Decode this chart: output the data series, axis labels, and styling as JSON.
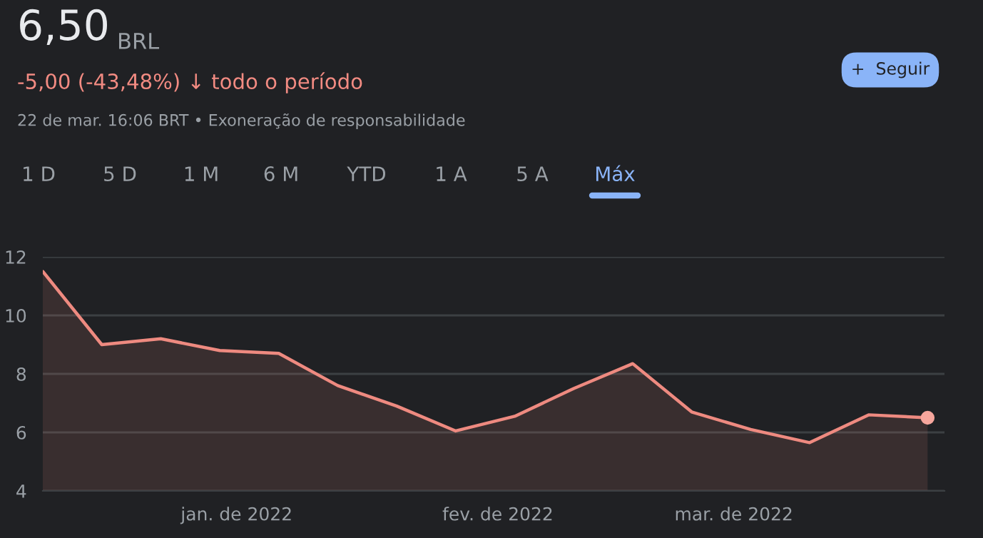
{
  "chart_data": {
    "type": "area",
    "title": "6,50",
    "annotations": [
      "BRL",
      "-5,00 (-43,48%) ↓ todo o período",
      "22 de mar. 16:06 BRT • Exoneração de responsabilidade",
      "+  Seguir",
      "1 D",
      "5 D",
      "1 M",
      "6 M",
      "YTD",
      "1 A",
      "5 A",
      "Máx"
    ],
    "x": [
      "2021-12-09",
      "2021-12-16",
      "2021-12-23",
      "2021-12-30",
      "2022-01-06",
      "2022-01-13",
      "2022-01-20",
      "2022-01-27",
      "2022-02-03",
      "2022-02-10",
      "2022-02-17",
      "2022-02-24",
      "2022-03-03",
      "2022-03-10",
      "2022-03-17",
      "2022-03-24"
    ],
    "series": [
      {
        "color": "#ee8a80",
        "values": [
          11.5,
          9.0,
          9.2,
          8.8,
          8.7,
          7.6,
          6.9,
          6.05,
          6.55,
          7.5,
          8.35,
          6.7,
          6.1,
          5.65,
          6.6,
          6.5
        ]
      },
      {
        "type": "scatter",
        "color": "#f6a69d",
        "x": [
          "2022-03-24"
        ],
        "values": [
          6.5
        ]
      }
    ],
    "xlim": [
      "2021-12-09",
      "2022-03-26"
    ],
    "xticks": [
      {
        "value": "2022-01-01",
        "label": "jan. de 2022"
      },
      {
        "value": "2022-02-01",
        "label": "fev. de 2022"
      },
      {
        "value": "2022-03-01",
        "label": "mar. de 2022"
      }
    ],
    "ylim": [
      4,
      12
    ],
    "yticks": [
      4,
      6,
      8,
      10,
      12
    ],
    "grid": "y"
  }
}
